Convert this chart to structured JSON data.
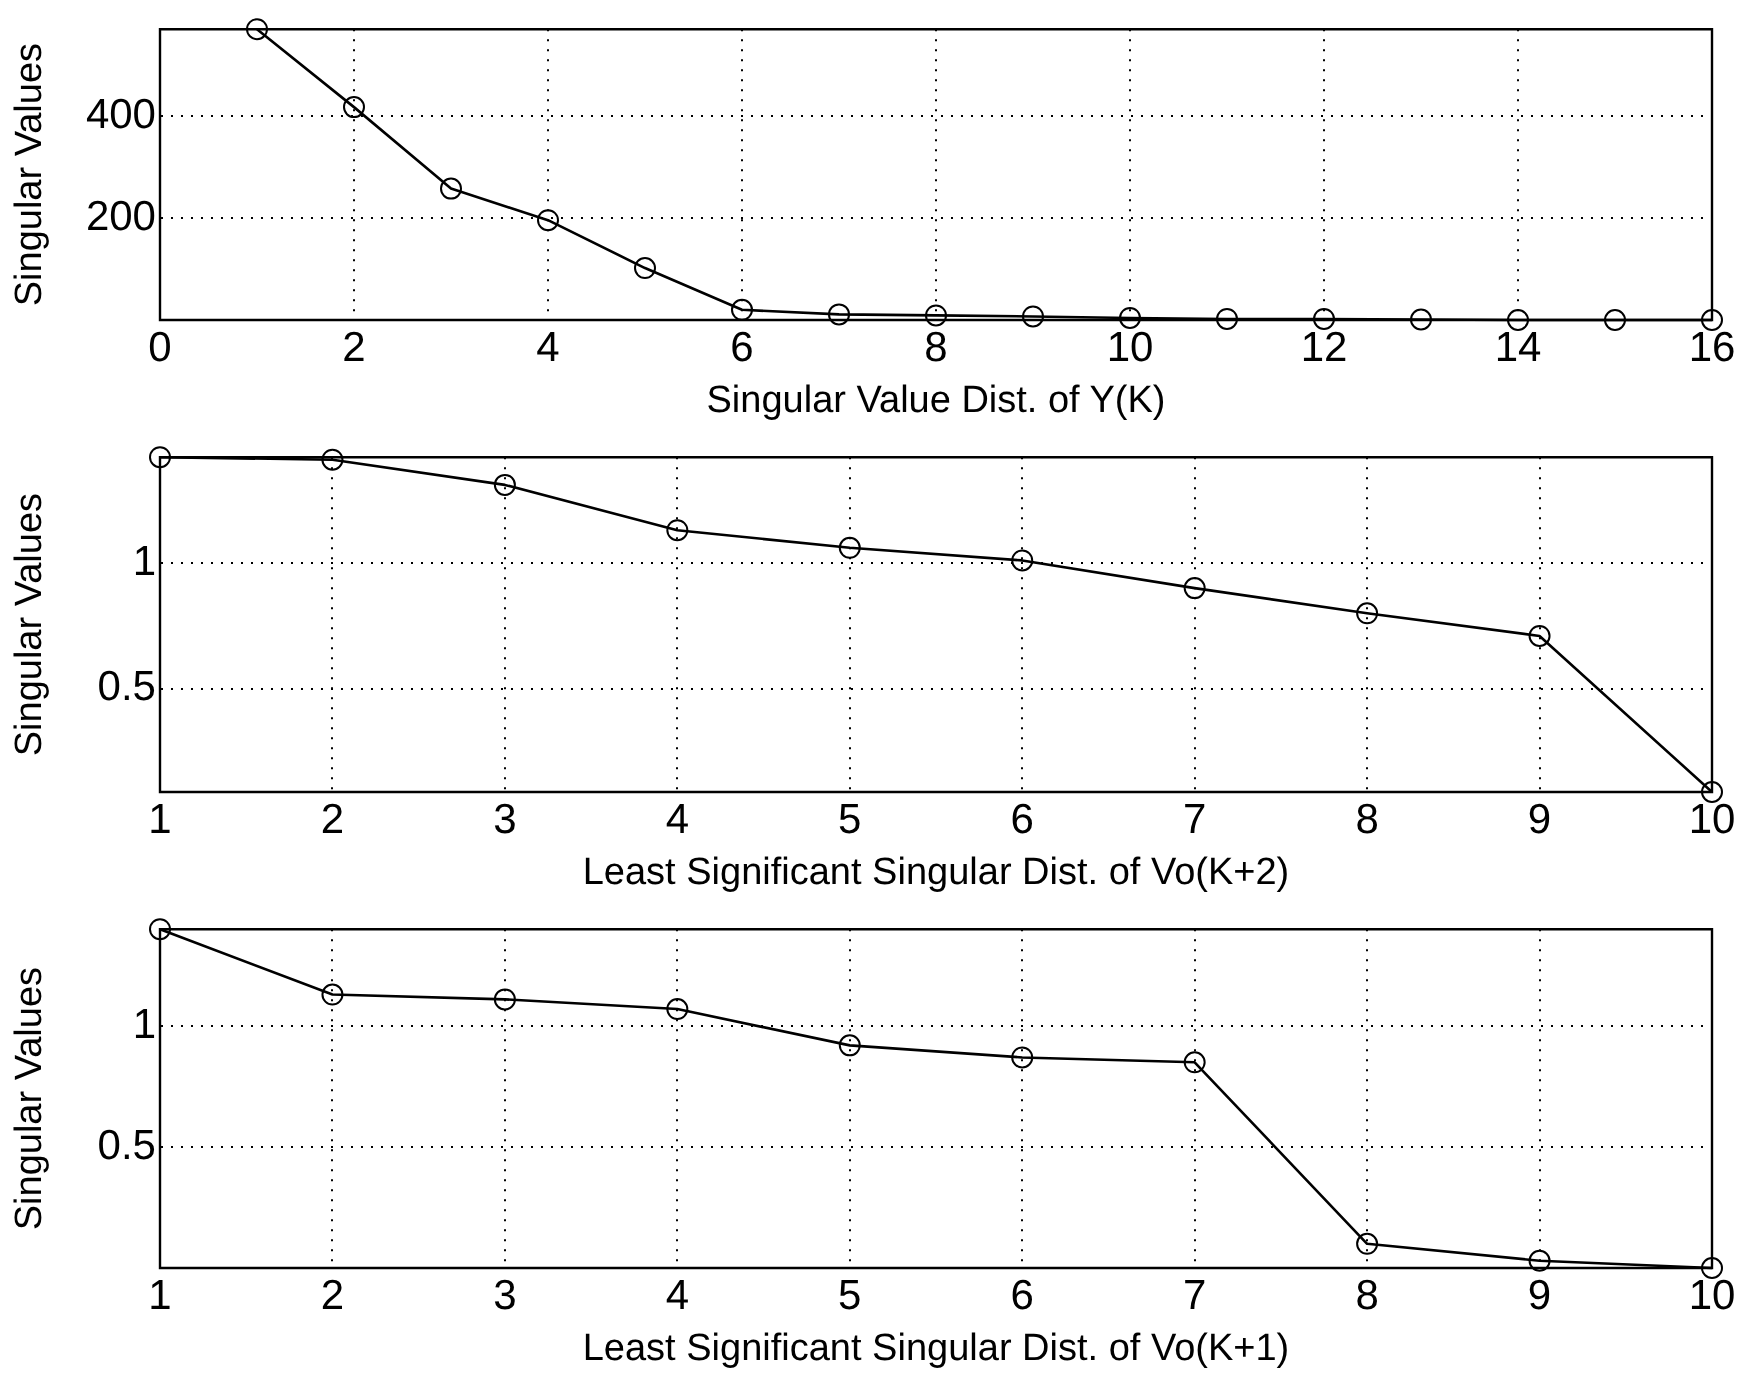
{
  "chart_data": [
    {
      "type": "line",
      "xlabel": "Singular Value Dist. of Y(K)",
      "ylabel": "Singular Values",
      "x": [
        1,
        2,
        3,
        4,
        5,
        6,
        7,
        8,
        9,
        10,
        11,
        12,
        13,
        14,
        15,
        16
      ],
      "series": [
        {
          "color": "#000000",
          "values": [
            571,
            418,
            258,
            196,
            102,
            20,
            11,
            9,
            7,
            4,
            2,
            2,
            1,
            0,
            0,
            0
          ]
        }
      ],
      "xlim": [
        0,
        16
      ],
      "xticks": [
        0,
        2,
        4,
        6,
        8,
        10,
        12,
        14,
        16
      ],
      "ylim": [
        0,
        571
      ],
      "yticks": [
        200,
        400
      ],
      "grid": true,
      "marker": "circle",
      "line_style": "solid"
    },
    {
      "type": "line",
      "xlabel": "Least Significant Singular Dist. of Vo(K+2)",
      "ylabel": "Singular Values",
      "x": [
        1,
        2,
        3,
        4,
        5,
        6,
        7,
        8,
        9,
        10
      ],
      "series": [
        {
          "color": "#000000",
          "values": [
            1.42,
            1.41,
            1.31,
            1.13,
            1.06,
            1.01,
            0.9,
            0.8,
            0.71,
            0.09
          ]
        }
      ],
      "xlim": [
        1,
        10
      ],
      "xticks": [
        1,
        2,
        3,
        4,
        5,
        6,
        7,
        8,
        9,
        10
      ],
      "ylim": [
        0.09,
        1.42
      ],
      "yticks": [
        0.5,
        1
      ],
      "grid": true,
      "marker": "circle",
      "line_style": "solid"
    },
    {
      "type": "line",
      "xlabel": "Least Significant Singular Dist. of Vo(K+1)",
      "ylabel": "Singular Values",
      "x": [
        1,
        2,
        3,
        4,
        5,
        6,
        7,
        8,
        9,
        10
      ],
      "series": [
        {
          "color": "#000000",
          "values": [
            1.4,
            1.13,
            1.11,
            1.07,
            0.92,
            0.87,
            0.85,
            0.1,
            0.03,
            0
          ]
        }
      ],
      "xlim": [
        1,
        10
      ],
      "xticks": [
        1,
        2,
        3,
        4,
        5,
        6,
        7,
        8,
        9,
        10
      ],
      "ylim": [
        0,
        1.4
      ],
      "yticks": [
        0.5,
        1
      ],
      "grid": true,
      "marker": "circle",
      "line_style": "solid"
    }
  ]
}
